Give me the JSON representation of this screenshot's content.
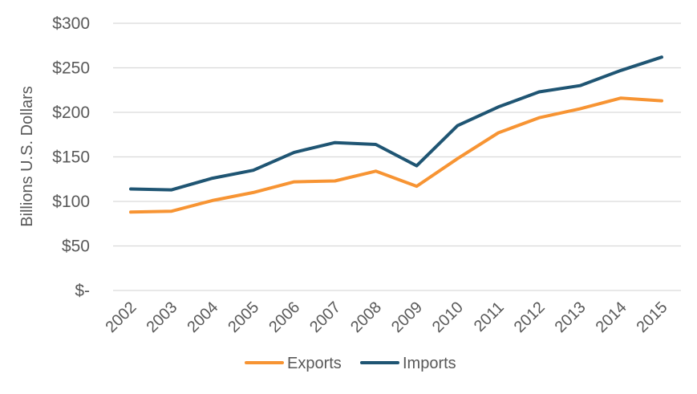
{
  "chart_data": {
    "type": "line",
    "title": "",
    "xlabel": "",
    "ylabel": "Billions U.S. Dollars",
    "categories": [
      "2002",
      "2003",
      "2004",
      "2005",
      "2006",
      "2007",
      "2008",
      "2009",
      "2010",
      "2011",
      "2012",
      "2013",
      "2014",
      "2015"
    ],
    "ylim": [
      0,
      300
    ],
    "y_ticks": [
      0,
      50,
      100,
      150,
      200,
      250,
      300
    ],
    "y_tick_labels": [
      "$-",
      "$50",
      "$100",
      "$150",
      "$200",
      "$250",
      "$300"
    ],
    "grid": true,
    "legend_position": "bottom",
    "series": [
      {
        "name": "Exports",
        "color": "#F79433",
        "values": [
          88,
          89,
          101,
          110,
          122,
          123,
          134,
          117,
          148,
          177,
          194,
          204,
          216,
          213
        ]
      },
      {
        "name": "Imports",
        "color": "#1F5573",
        "values": [
          114,
          113,
          126,
          135,
          155,
          166,
          164,
          140,
          185,
          206,
          223,
          230,
          247,
          262
        ]
      }
    ]
  }
}
